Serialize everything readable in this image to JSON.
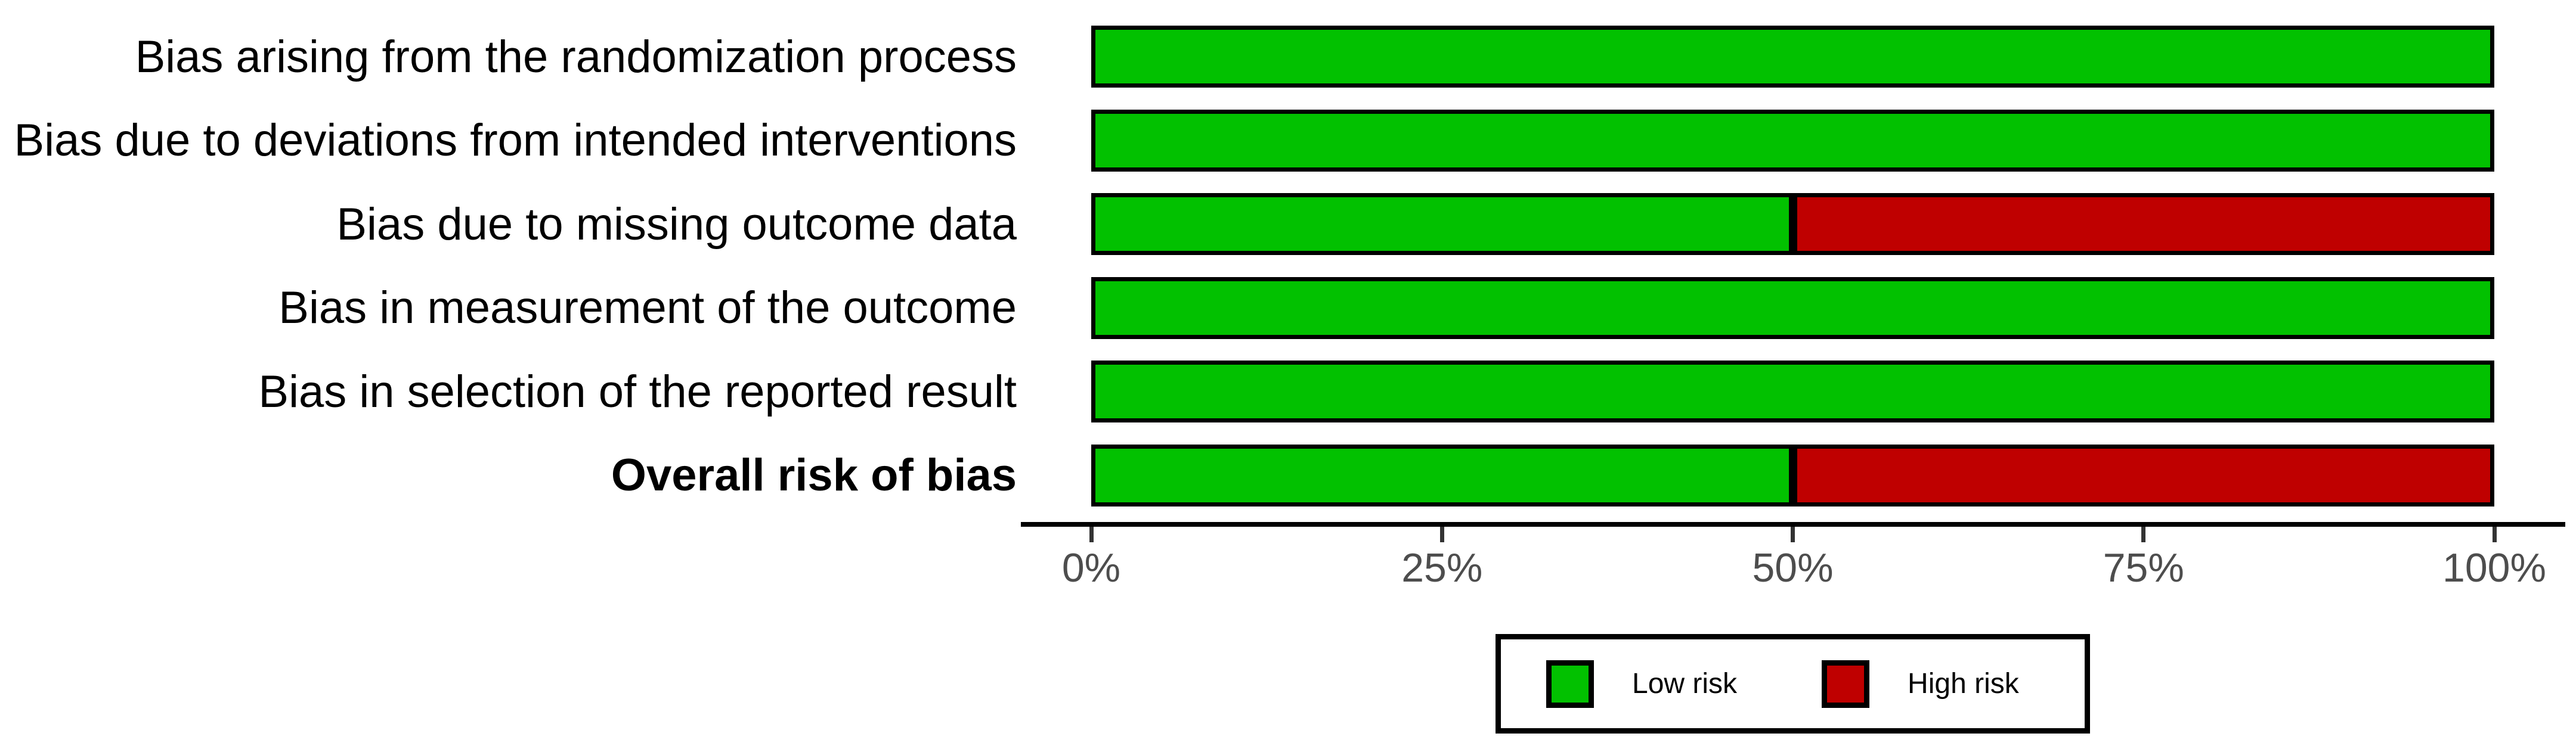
{
  "chart_data": {
    "type": "bar",
    "orientation": "horizontal_stacked",
    "title": "",
    "categories": [
      "Bias arising from the randomization process",
      "Bias due to deviations from intended interventions",
      "Bias due to missing outcome data",
      "Bias in measurement of the outcome",
      "Bias in selection of the reported result",
      "Overall risk of bias"
    ],
    "emphasized_category": "Overall risk of bias",
    "series": [
      {
        "name": "Low risk",
        "color": "#02C100",
        "values": [
          100,
          100,
          50,
          100,
          100,
          50
        ]
      },
      {
        "name": "High risk",
        "color": "#BF0000",
        "values": [
          0,
          0,
          50,
          0,
          0,
          50
        ]
      }
    ],
    "x_axis": {
      "range": [
        0,
        100
      ],
      "unit": "%",
      "tick_values": [
        0,
        25,
        50,
        75,
        100
      ],
      "tick_labels": [
        "0%",
        "25%",
        "50%",
        "75%",
        "100%"
      ]
    },
    "legend": {
      "position": "bottom",
      "items": [
        {
          "label": "Low risk",
          "color": "#02C100"
        },
        {
          "label": "High risk",
          "color": "#BF0000"
        }
      ]
    },
    "styles": {
      "bar_border_color": "#000000",
      "axis_line_color": "#000000",
      "tick_color": "#333333",
      "tick_label_color": "#4D4D4D",
      "grid": "off",
      "background": "#FFFFFF"
    }
  }
}
